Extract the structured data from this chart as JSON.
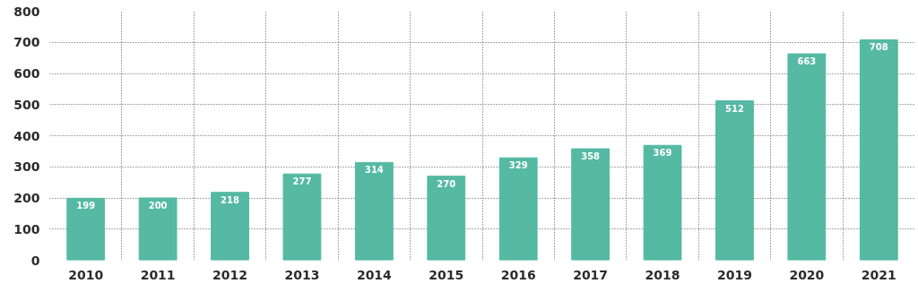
{
  "chart_data": {
    "type": "bar",
    "categories": [
      "2010",
      "2011",
      "2012",
      "2013",
      "2014",
      "2015",
      "2016",
      "2017",
      "2018",
      "2019",
      "2020",
      "2021"
    ],
    "values": [
      199,
      200,
      218,
      277,
      314,
      270,
      329,
      358,
      369,
      512,
      663,
      708
    ],
    "color": "#55b9a3",
    "ylim": [
      0,
      800
    ],
    "yticks": [
      0,
      100,
      200,
      300,
      400,
      500,
      600,
      700,
      800
    ],
    "grid": true,
    "data_labels": true
  }
}
